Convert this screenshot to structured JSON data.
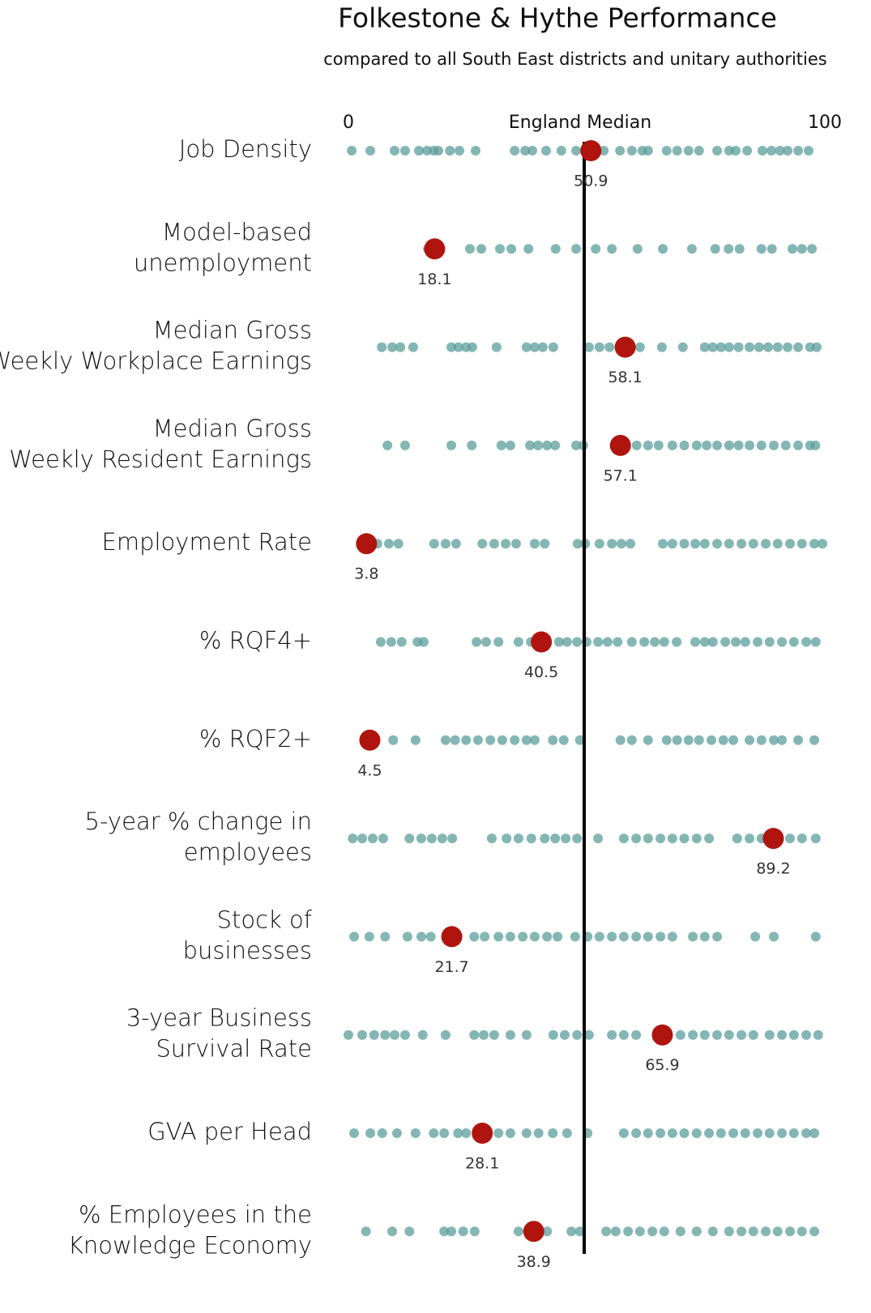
{
  "chart_data": {
    "type": "strip",
    "title": "Folkestone & Hythe Performance",
    "subtitle": "compared to all South East districts and unitary authorities",
    "xlim": [
      0,
      100
    ],
    "xticks": [
      0,
      100
    ],
    "median": {
      "label": "England Median",
      "value": 49.5
    },
    "highlight_color": "#b0140e",
    "dot_color": "#5b9e9b",
    "rows": [
      {
        "label": [
          "Job Density"
        ],
        "value": 50.9,
        "others": [
          0.7,
          4.6,
          9.7,
          11.9,
          14.8,
          16.5,
          17.9,
          18.9,
          21.3,
          23.3,
          26.7,
          34.9,
          37.1,
          38.6,
          41.5,
          44.7,
          47.8,
          53.6,
          57,
          59.5,
          61.7,
          62.9,
          66.8,
          69,
          71.4,
          73.6,
          77.4,
          79.9,
          81.3,
          83.7,
          86.9,
          88.8,
          90.6,
          92.2,
          94.4,
          96.6
        ]
      },
      {
        "label": [
          "Model-based",
          "unemployment"
        ],
        "value": 18.1,
        "others": [
          16.7,
          25.5,
          27.9,
          31.8,
          34.2,
          37.8,
          43.5,
          47.8,
          51.9,
          55.3,
          60.7,
          66,
          72.1,
          77,
          79.8,
          82.1,
          86.7,
          88.9,
          93.2,
          95.2,
          97.3
        ]
      },
      {
        "label": [
          "Median Gross",
          "Weekly Workplace Earnings"
        ],
        "value": 58.1,
        "others": [
          7,
          9.2,
          10.9,
          13.6,
          21.6,
          23.1,
          24.7,
          26,
          31.1,
          37.4,
          39.1,
          40.8,
          43,
          50.5,
          52.7,
          54.8,
          61.2,
          65.8,
          70.2,
          74.8,
          76.5,
          78.2,
          79.9,
          81.9,
          84.2,
          86.2,
          88.1,
          90.1,
          92.2,
          94.4,
          96.9,
          98.3
        ]
      },
      {
        "label": [
          "Median Gross",
          "Weekly Resident Earnings"
        ],
        "value": 57.1,
        "others": [
          8.2,
          11.9,
          21.6,
          25.9,
          32.1,
          34,
          38.1,
          39.8,
          41.7,
          43.4,
          47.8,
          49.3,
          60.5,
          62.9,
          65.1,
          68,
          70.5,
          73.1,
          75.2,
          77.4,
          79.9,
          81.9,
          84.2,
          86.7,
          89.3,
          91.8,
          94.4,
          96.9,
          98
        ]
      },
      {
        "label": [
          "Employment Rate"
        ],
        "value": 3.8,
        "others": [
          2.7,
          6.1,
          8.5,
          10.5,
          18,
          20.4,
          22.6,
          28.1,
          30.6,
          33,
          35.2,
          39.1,
          41.2,
          48.1,
          49.7,
          52.7,
          55.3,
          57.3,
          59.2,
          66,
          68,
          70.5,
          72.8,
          74.8,
          77.4,
          79.9,
          82.5,
          85,
          87.6,
          90.1,
          92.7,
          95.2,
          97.8,
          99.5
        ]
      },
      {
        "label": [
          "% RQF4+"
        ],
        "value": 40.5,
        "others": [
          6.8,
          9,
          11.2,
          14.5,
          15.8,
          26.9,
          28.9,
          31.5,
          35.7,
          38.3,
          44.2,
          45.9,
          48,
          50,
          52.4,
          54.4,
          56.5,
          59.5,
          62.1,
          64.3,
          66.3,
          68.9,
          72.8,
          74.8,
          76.5,
          79.1,
          81.3,
          83.3,
          85.9,
          88.4,
          91,
          93.5,
          96.1,
          98.1
        ]
      },
      {
        "label": [
          "% RQF2+"
        ],
        "value": 4.5,
        "others": [
          9.4,
          14.1,
          20.4,
          22.4,
          24.7,
          27.2,
          29.8,
          32.3,
          34.9,
          37.4,
          39.1,
          42.9,
          45.2,
          48.6,
          57.1,
          59.5,
          62.9,
          66.8,
          69,
          71.4,
          73.6,
          76.2,
          78.7,
          80.8,
          84.2,
          86.7,
          89.3,
          91,
          94.4,
          97.8
        ]
      },
      {
        "label": [
          "5-year % change in",
          "employees"
        ],
        "value": 89.2,
        "others": [
          0.9,
          2.9,
          5.1,
          7.3,
          12.8,
          15.3,
          17.5,
          19.7,
          21.8,
          30.1,
          33.2,
          35.7,
          38.4,
          41.2,
          43.4,
          45.6,
          48,
          52.4,
          57.8,
          60.4,
          62.9,
          65.5,
          68,
          70.5,
          73.1,
          75.7,
          81.6,
          84.2,
          86.7,
          90.1,
          92.7,
          95.2,
          98.1
        ]
      },
      {
        "label": [
          "Stock of",
          "businesses"
        ],
        "value": 21.7,
        "others": [
          1.2,
          4.4,
          7.7,
          12.4,
          15.3,
          17.3,
          26.4,
          28.6,
          31.5,
          34,
          36.6,
          39.1,
          41.7,
          43.9,
          47.6,
          50.2,
          52.7,
          55.3,
          57.8,
          60.4,
          62.9,
          65.5,
          68,
          72.3,
          74.8,
          77.4,
          85.4,
          89.3,
          98.1
        ]
      },
      {
        "label": [
          "3-year Business",
          "Survival Rate"
        ],
        "value": 65.9,
        "others": [
          0,
          2.9,
          5.4,
          7.7,
          9.7,
          11.9,
          15.6,
          20.4,
          26.4,
          28.4,
          30.6,
          34,
          37.4,
          43,
          45.4,
          48,
          50.5,
          55.3,
          57.8,
          60.4,
          69.7,
          72.3,
          74.8,
          77.4,
          79.9,
          82.5,
          85,
          88.4,
          91,
          93.5,
          96.1,
          98.6
        ]
      },
      {
        "label": [
          "GVA per Head"
        ],
        "value": 28.1,
        "others": [
          1.2,
          4.6,
          7.1,
          10.2,
          14.1,
          17.9,
          20.1,
          23,
          24.7,
          31.5,
          34,
          37.4,
          39.9,
          42.9,
          45.9,
          50.2,
          57.8,
          60.4,
          62.9,
          65.5,
          68,
          70.5,
          73.1,
          75.7,
          78.2,
          80.8,
          83.3,
          85.9,
          88.4,
          91,
          93.5,
          96.1,
          97.8
        ]
      },
      {
        "label": [
          "% Employees in the",
          "Knowledge Economy"
        ],
        "value": 38.9,
        "others": [
          3.7,
          9.2,
          12.8,
          20.1,
          21.6,
          24.1,
          26.5,
          35.7,
          41.7,
          46.8,
          48.6,
          54.1,
          56.1,
          58.7,
          61.2,
          63.8,
          66.3,
          69.7,
          73.1,
          76.5,
          79.9,
          82.5,
          85,
          87.6,
          90.1,
          92.7,
          95.2,
          97.8
        ]
      }
    ]
  }
}
